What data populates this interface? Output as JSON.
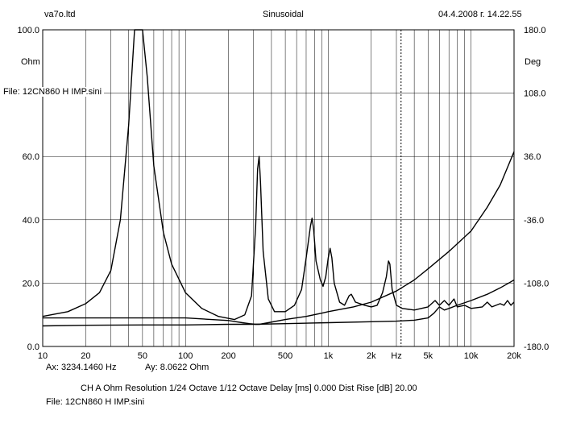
{
  "header": {
    "left": "va7o.ltd",
    "center": "Sinusoidal",
    "right": "04.4.2008 г. 14.22.55"
  },
  "file_label": "File: 12CN860 H IMP.sini",
  "cursor_readout": {
    "ax": "Ax: 3234.1460 Hz",
    "ay": "Ay: 8.0622 Ohm"
  },
  "footer": {
    "settings": "CH A   Ohm   Resolution 1/24 Octave   1/12 Octave   Delay [ms] 0.000   Dist Rise [dB] 20.00",
    "file": "File: 12CN860 H IMP.sini"
  },
  "chart_data": {
    "type": "line",
    "x_scale": "log",
    "xlim": [
      10,
      20000
    ],
    "ylim_left": [
      0,
      100
    ],
    "ylim_right": [
      -180,
      180
    ],
    "ylabel_left": "Ohm",
    "ylabel_right": "Deg",
    "x_tick_labels": [
      {
        "v": 10,
        "t": "10"
      },
      {
        "v": 20,
        "t": "20"
      },
      {
        "v": 50,
        "t": "50"
      },
      {
        "v": 100,
        "t": "100"
      },
      {
        "v": 200,
        "t": "200"
      },
      {
        "v": 500,
        "t": "500"
      },
      {
        "v": 1000,
        "t": "1k"
      },
      {
        "v": 2000,
        "t": "2k"
      },
      {
        "v": 3000,
        "t": "Hz"
      },
      {
        "v": 5000,
        "t": "5k"
      },
      {
        "v": 10000,
        "t": "10k"
      },
      {
        "v": 20000,
        "t": "20k"
      }
    ],
    "y_tick_labels_left": [
      {
        "v": 100,
        "t": "100.0"
      },
      {
        "v": 60,
        "t": "60.0"
      },
      {
        "v": 40,
        "t": "40.0"
      },
      {
        "v": 20,
        "t": "20.0"
      },
      {
        "v": 0,
        "t": "0.0"
      }
    ],
    "y_tick_labels_right": [
      {
        "v": 180,
        "t": "180.0"
      },
      {
        "v": 108,
        "t": "108.0"
      },
      {
        "v": 36,
        "t": "36.0"
      },
      {
        "v": -36,
        "t": "-36.0"
      },
      {
        "v": -108,
        "t": "-108.0"
      },
      {
        "v": -180,
        "t": "-180.0"
      }
    ],
    "cursor_x": 3234.146,
    "grid": true,
    "series": [
      {
        "values": [
          [
            10,
            9.5
          ],
          [
            15,
            11
          ],
          [
            20,
            13.5
          ],
          [
            25,
            17
          ],
          [
            30,
            24
          ],
          [
            35,
            40
          ],
          [
            40,
            70
          ],
          [
            44,
            100
          ],
          [
            50,
            100
          ],
          [
            54,
            85
          ],
          [
            60,
            57
          ],
          [
            70,
            36
          ],
          [
            80,
            26
          ],
          [
            100,
            17
          ],
          [
            130,
            12
          ],
          [
            170,
            9.5
          ],
          [
            220,
            8.5
          ],
          [
            260,
            10
          ],
          [
            290,
            16
          ],
          [
            310,
            38
          ],
          [
            320,
            56
          ],
          [
            328,
            60
          ],
          [
            335,
            52
          ],
          [
            350,
            30
          ],
          [
            380,
            15
          ],
          [
            420,
            11
          ],
          [
            500,
            11
          ],
          [
            580,
            13
          ],
          [
            650,
            18
          ],
          [
            700,
            28
          ],
          [
            750,
            38
          ],
          [
            770,
            40.5
          ],
          [
            790,
            37
          ],
          [
            820,
            27
          ],
          [
            880,
            21
          ],
          [
            920,
            19
          ],
          [
            960,
            22
          ],
          [
            1000,
            28
          ],
          [
            1030,
            31
          ],
          [
            1060,
            28
          ],
          [
            1100,
            20
          ],
          [
            1200,
            14
          ],
          [
            1300,
            13
          ],
          [
            1400,
            16
          ],
          [
            1450,
            16.5
          ],
          [
            1550,
            14
          ],
          [
            1800,
            13
          ],
          [
            2000,
            12.5
          ],
          [
            2200,
            13
          ],
          [
            2400,
            17
          ],
          [
            2550,
            22
          ],
          [
            2640,
            27
          ],
          [
            2700,
            26
          ],
          [
            2800,
            18
          ],
          [
            3000,
            13
          ],
          [
            3300,
            12
          ],
          [
            4000,
            11.5
          ],
          [
            5000,
            12.5
          ],
          [
            5600,
            14.5
          ],
          [
            6000,
            13
          ],
          [
            6500,
            14.5
          ],
          [
            7000,
            13
          ],
          [
            7600,
            15
          ],
          [
            8000,
            12.5
          ],
          [
            9000,
            13
          ],
          [
            10000,
            12
          ],
          [
            12000,
            12.5
          ],
          [
            13000,
            14
          ],
          [
            14000,
            12.5
          ],
          [
            16000,
            13.5
          ],
          [
            17000,
            13
          ],
          [
            18000,
            14.5
          ],
          [
            19000,
            13
          ],
          [
            20000,
            14
          ]
        ]
      },
      {
        "values": [
          [
            10,
            9
          ],
          [
            20,
            9
          ],
          [
            50,
            9
          ],
          [
            100,
            9
          ],
          [
            200,
            8.2
          ],
          [
            250,
            7.5
          ],
          [
            280,
            7.2
          ],
          [
            310,
            7
          ],
          [
            330,
            7
          ],
          [
            380,
            7.5
          ],
          [
            500,
            8.5
          ],
          [
            700,
            9.5
          ],
          [
            900,
            10.5
          ],
          [
            1000,
            11
          ],
          [
            1500,
            12.5
          ],
          [
            2000,
            14
          ],
          [
            3000,
            17.5
          ],
          [
            4000,
            21
          ],
          [
            5000,
            24.5
          ],
          [
            7000,
            30
          ],
          [
            10000,
            36.5
          ],
          [
            13000,
            44
          ],
          [
            16000,
            51
          ],
          [
            20000,
            61.5
          ]
        ]
      },
      {
        "values": [
          [
            10,
            6.5
          ],
          [
            20,
            6.7
          ],
          [
            50,
            6.8
          ],
          [
            100,
            6.8
          ],
          [
            200,
            7
          ],
          [
            300,
            7
          ],
          [
            500,
            7.2
          ],
          [
            1000,
            7.5
          ],
          [
            2000,
            7.8
          ],
          [
            3000,
            8
          ],
          [
            4000,
            8.3
          ],
          [
            5000,
            9
          ],
          [
            5500,
            10.5
          ],
          [
            6000,
            12.5
          ],
          [
            6500,
            11.5
          ],
          [
            7000,
            12
          ],
          [
            8000,
            13
          ],
          [
            10000,
            14.5
          ],
          [
            13000,
            16.5
          ],
          [
            16000,
            18.5
          ],
          [
            20000,
            21
          ]
        ]
      }
    ]
  }
}
